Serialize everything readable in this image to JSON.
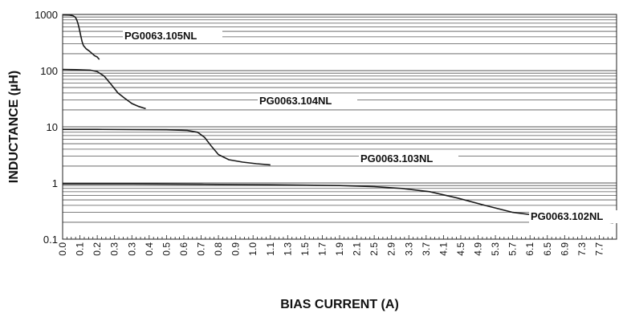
{
  "chart_data": {
    "type": "line",
    "xlabel": "BIAS CURRENT (A)",
    "ylabel": "INDUCTANCE (µH)",
    "xlim": [
      0,
      8
    ],
    "ylim": [
      0.1,
      1000
    ],
    "yscale": "log",
    "grid": true,
    "yticks": [
      {
        "value": 0.1,
        "label": "0.1"
      },
      {
        "value": 1,
        "label": "1"
      },
      {
        "value": 10,
        "label": "10"
      },
      {
        "value": 100,
        "label": "100"
      },
      {
        "value": 1000,
        "label": "1000"
      }
    ],
    "xticks": [
      "0.0",
      "0.1",
      "0.2",
      "0.3",
      "0.3",
      "0.4",
      "0.5",
      "0.6",
      "0.7",
      "0.8",
      "0.9",
      "1.0",
      "1.1",
      "1.3",
      "1.5",
      "1.7",
      "1.9",
      "2.1",
      "2.5",
      "2.9",
      "3.3",
      "3.7",
      "4.1",
      "4.5",
      "4.9",
      "5.3",
      "5.7",
      "6.1",
      "6.5",
      "6.9",
      "7.3",
      "7.7"
    ],
    "series": [
      {
        "name": "PG0063.105NL",
        "points": [
          [
            0.0,
            980
          ],
          [
            0.1,
            975
          ],
          [
            0.15,
            950
          ],
          [
            0.18,
            900
          ],
          [
            0.2,
            820
          ],
          [
            0.22,
            700
          ],
          [
            0.24,
            560
          ],
          [
            0.26,
            430
          ],
          [
            0.28,
            330
          ],
          [
            0.3,
            280
          ],
          [
            0.34,
            245
          ],
          [
            0.38,
            225
          ],
          [
            0.42,
            205
          ],
          [
            0.46,
            185
          ],
          [
            0.5,
            175
          ],
          [
            0.53,
            158
          ]
        ]
      },
      {
        "name": "PG0063.104NL",
        "points": [
          [
            0.0,
            105
          ],
          [
            0.2,
            104
          ],
          [
            0.4,
            102
          ],
          [
            0.5,
            96
          ],
          [
            0.6,
            80
          ],
          [
            0.7,
            57
          ],
          [
            0.8,
            40
          ],
          [
            0.9,
            32
          ],
          [
            1.0,
            26
          ],
          [
            1.1,
            23
          ],
          [
            1.2,
            21
          ]
        ]
      },
      {
        "name": "PG0063.103NL",
        "points": [
          [
            0.0,
            9
          ],
          [
            0.5,
            9
          ],
          [
            1.0,
            8.9
          ],
          [
            1.5,
            8.85
          ],
          [
            1.8,
            8.6
          ],
          [
            1.95,
            8.0
          ],
          [
            2.05,
            6.5
          ],
          [
            2.15,
            4.5
          ],
          [
            2.25,
            3.2
          ],
          [
            2.4,
            2.6
          ],
          [
            2.6,
            2.35
          ],
          [
            2.8,
            2.2
          ],
          [
            3.0,
            2.1
          ]
        ]
      },
      {
        "name": "PG0063.102NL",
        "points": [
          [
            0.0,
            0.96
          ],
          [
            1.0,
            0.96
          ],
          [
            2.0,
            0.95
          ],
          [
            3.0,
            0.93
          ],
          [
            4.0,
            0.9
          ],
          [
            4.5,
            0.86
          ],
          [
            4.9,
            0.8
          ],
          [
            5.3,
            0.7
          ],
          [
            5.7,
            0.54
          ],
          [
            6.1,
            0.4
          ],
          [
            6.5,
            0.3
          ],
          [
            6.9,
            0.26
          ],
          [
            7.3,
            0.23
          ],
          [
            7.7,
            0.21
          ],
          [
            7.95,
            0.195
          ]
        ]
      }
    ],
    "line_color": "#1a1a1a",
    "grid_color": "#555555"
  }
}
